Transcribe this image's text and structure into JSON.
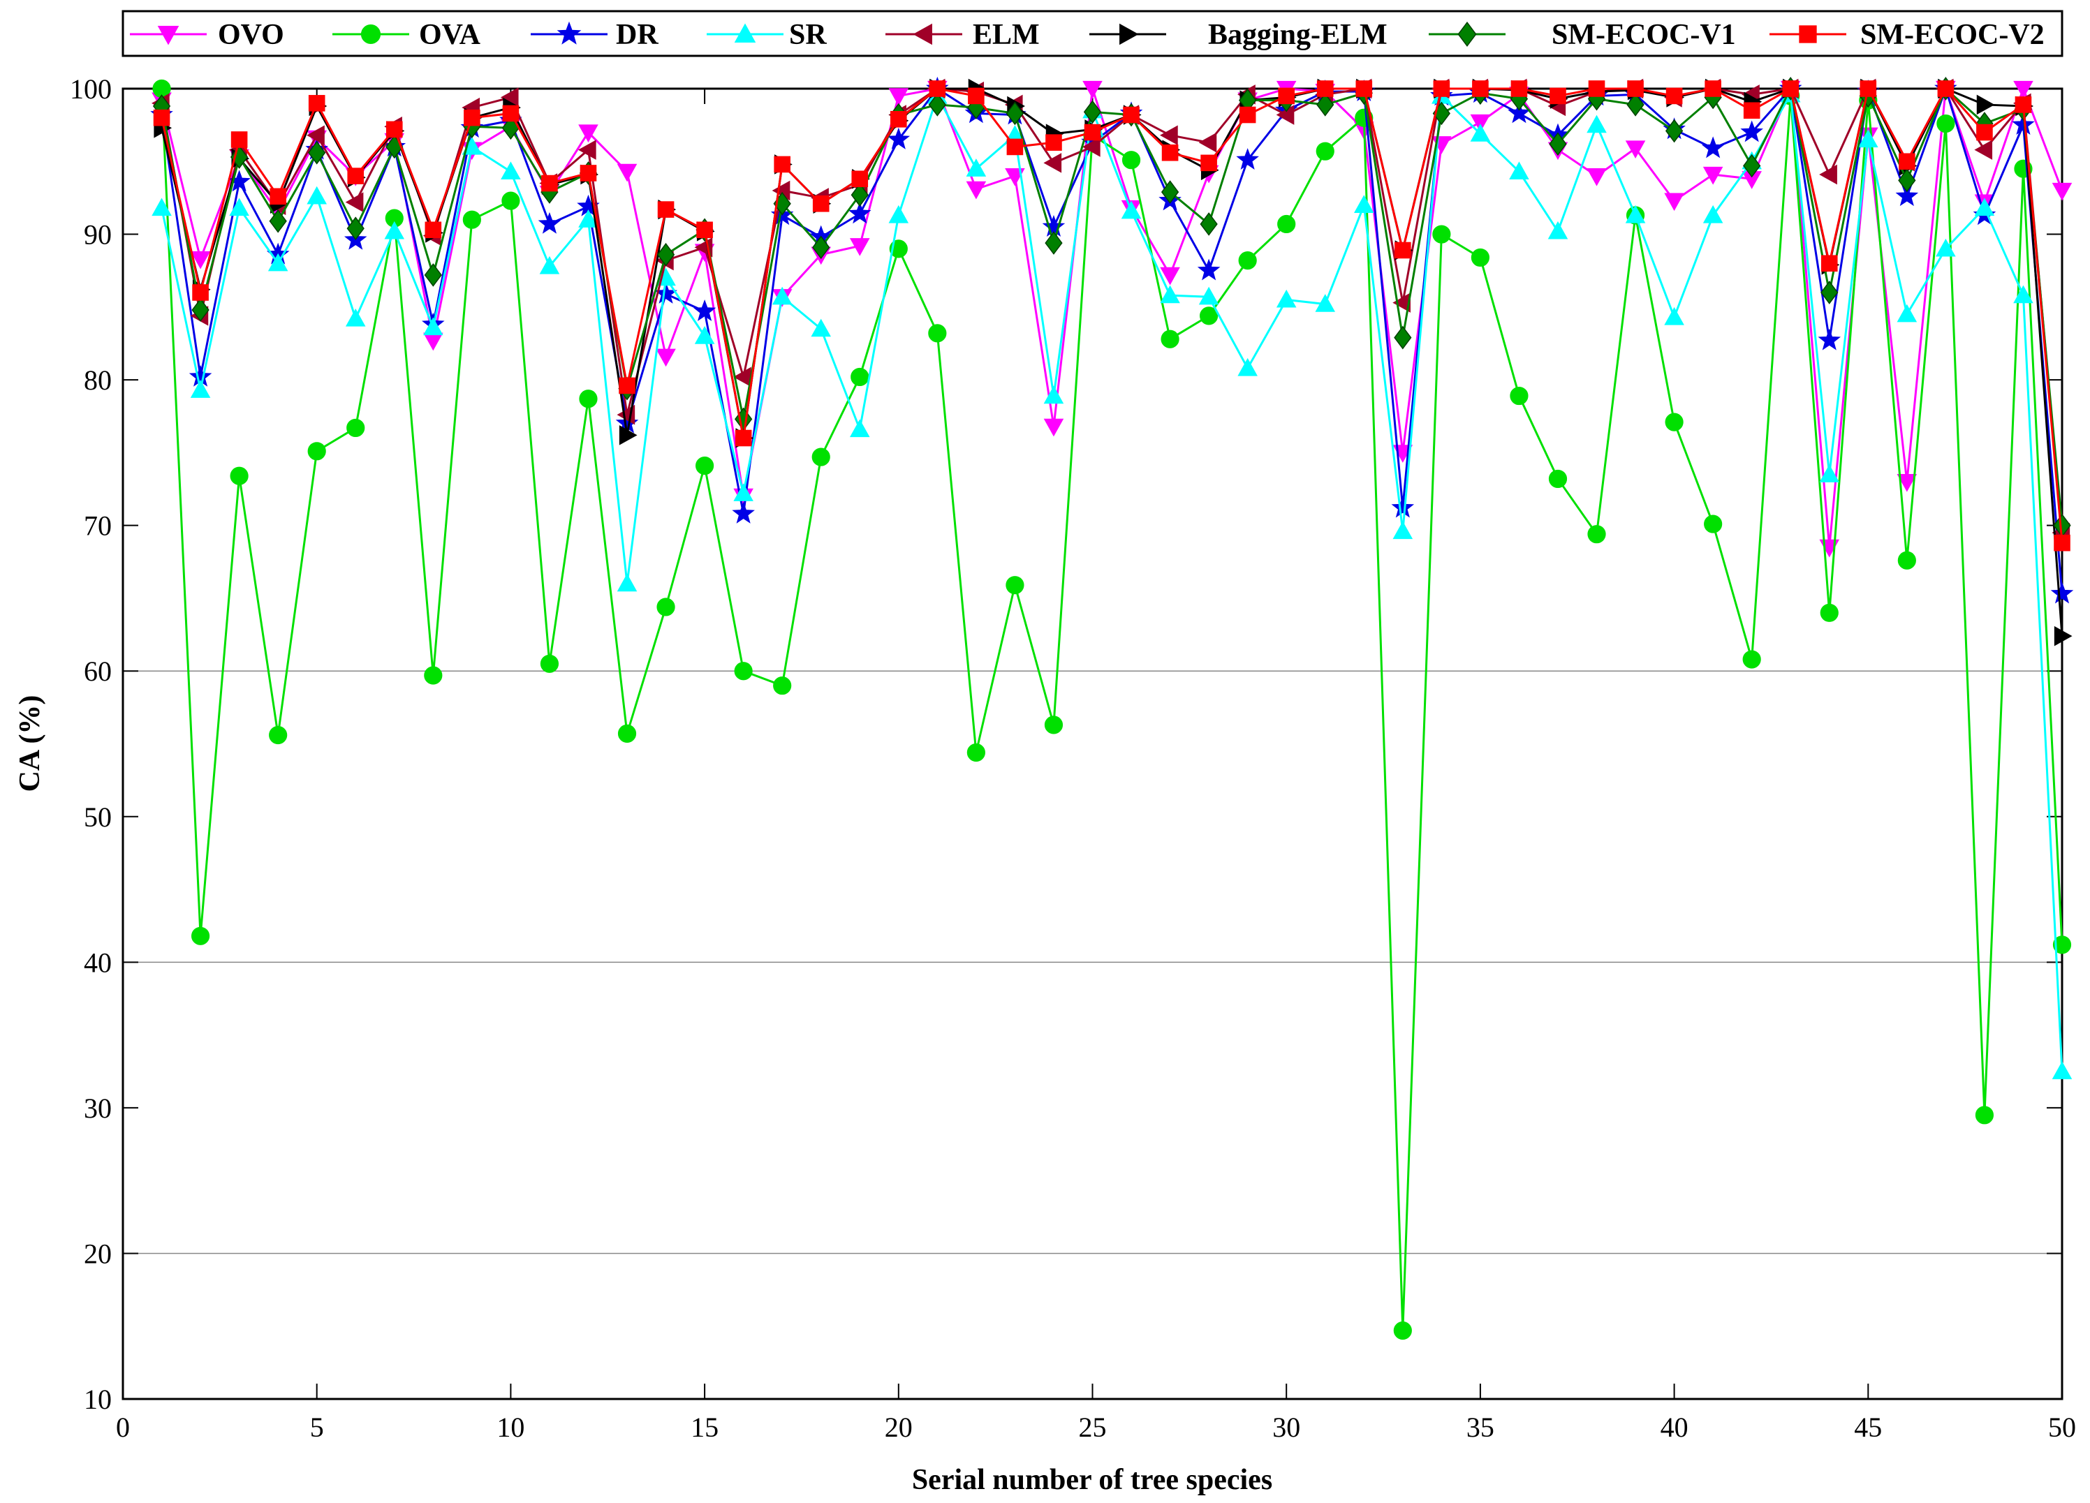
{
  "chart_data": {
    "type": "line",
    "title": "",
    "xlabel": "Serial number of tree species",
    "ylabel": "CA (%)",
    "xlim": [
      0,
      50
    ],
    "ylim": [
      10,
      100
    ],
    "xticks": [
      0,
      5,
      10,
      15,
      20,
      25,
      30,
      35,
      40,
      45,
      50
    ],
    "yticks": [
      10,
      20,
      30,
      40,
      50,
      60,
      70,
      80,
      90,
      100
    ],
    "grid_lines_y": [
      20,
      40,
      60
    ],
    "legend_position": "top (horizontal, above plot)",
    "x": [
      1,
      2,
      3,
      4,
      5,
      6,
      7,
      8,
      9,
      10,
      11,
      12,
      13,
      14,
      15,
      16,
      17,
      18,
      19,
      20,
      21,
      22,
      23,
      24,
      25,
      26,
      27,
      28,
      29,
      30,
      31,
      32,
      33,
      34,
      35,
      36,
      37,
      38,
      39,
      40,
      41,
      42,
      43,
      44,
      45,
      46,
      47,
      48,
      49,
      50
    ],
    "series": [
      {
        "name": "OVO",
        "color": "#ff00ff",
        "marker": "triangle-down",
        "values": [
          99.2,
          88.3,
          95.3,
          91.5,
          96.6,
          94.0,
          96.4,
          82.7,
          95.8,
          97.4,
          92.8,
          97.0,
          94.3,
          81.6,
          88.8,
          72.0,
          85.7,
          88.6,
          89.2,
          99.5,
          100,
          93.1,
          94.0,
          76.8,
          100,
          91.8,
          87.2,
          94.2,
          99.2,
          100,
          99.8,
          97.2,
          75.0,
          96.2,
          97.7,
          99.6,
          95.8,
          94.0,
          95.9,
          92.3,
          94.1,
          93.8,
          100,
          68.5,
          96.8,
          73.0,
          100,
          92.2,
          100,
          93.0
        ]
      },
      {
        "name": "OVA",
        "color": "#00e000",
        "marker": "circle",
        "values": [
          100,
          41.8,
          73.4,
          55.6,
          75.1,
          76.7,
          91.1,
          59.7,
          91.0,
          92.3,
          60.5,
          78.7,
          55.7,
          64.4,
          74.1,
          60.0,
          59.0,
          74.7,
          80.2,
          89.0,
          83.2,
          54.4,
          65.9,
          56.3,
          96.8,
          95.1,
          82.8,
          84.4,
          88.2,
          90.7,
          95.7,
          98.0,
          14.7,
          90.0,
          88.4,
          78.9,
          73.2,
          69.4,
          91.3,
          77.1,
          70.1,
          60.8,
          99.5,
          64.0,
          99.2,
          67.6,
          97.6,
          29.5,
          94.5,
          41.2
        ]
      },
      {
        "name": "DR",
        "color": "#0000e6",
        "marker": "star",
        "values": [
          98.2,
          80.2,
          93.6,
          88.6,
          95.8,
          89.6,
          96.0,
          83.8,
          97.3,
          97.8,
          90.7,
          91.9,
          77.0,
          85.9,
          84.7,
          70.8,
          91.3,
          89.8,
          91.4,
          96.5,
          100,
          98.3,
          98.2,
          90.5,
          96.3,
          98.3,
          92.3,
          87.5,
          95.1,
          98.5,
          99.8,
          99.8,
          71.2,
          99.5,
          99.7,
          98.3,
          96.8,
          99.5,
          99.6,
          97.2,
          95.9,
          97.0,
          100,
          82.7,
          99.8,
          92.6,
          100,
          91.3,
          97.5,
          65.3
        ]
      },
      {
        "name": "SR",
        "color": "#00ffff",
        "marker": "triangle-up",
        "values": [
          91.8,
          79.3,
          91.8,
          88.0,
          92.6,
          84.2,
          90.2,
          83.6,
          96.0,
          94.3,
          87.8,
          91.0,
          66.0,
          87.0,
          83.0,
          72.2,
          85.7,
          83.5,
          76.6,
          91.3,
          99.5,
          94.5,
          96.8,
          78.9,
          98.5,
          91.6,
          85.8,
          85.7,
          80.8,
          85.5,
          85.2,
          92.0,
          69.6,
          99.5,
          96.9,
          94.3,
          90.2,
          97.5,
          91.3,
          84.3,
          91.3,
          95.0,
          99.6,
          73.5,
          96.5,
          84.5,
          89.0,
          91.8,
          85.8,
          32.5
        ]
      },
      {
        "name": "ELM",
        "color": "#a00028",
        "marker": "triangle-left",
        "values": [
          99.0,
          84.4,
          95.8,
          92.0,
          96.8,
          92.2,
          97.4,
          89.9,
          98.7,
          99.4,
          93.5,
          95.8,
          77.6,
          88.2,
          89.1,
          80.2,
          93.0,
          92.5,
          93.4,
          98.2,
          100,
          99.8,
          98.9,
          94.9,
          96.0,
          98.2,
          96.8,
          96.3,
          99.6,
          98.2,
          99.6,
          100,
          85.3,
          100,
          100,
          100,
          98.8,
          99.8,
          100,
          99.4,
          100,
          99.6,
          100,
          94.1,
          100,
          95.0,
          100,
          95.8,
          99.0,
          69.5
        ]
      },
      {
        "name": "Bagging-ELM",
        "color": "#000000",
        "marker": "triangle-right",
        "values": [
          97.3,
          86.2,
          95.2,
          92.1,
          98.8,
          93.9,
          97.1,
          90.1,
          98.0,
          98.7,
          93.4,
          94.1,
          76.2,
          91.7,
          90.2,
          76.0,
          94.8,
          92.1,
          93.8,
          97.8,
          100,
          100,
          98.8,
          96.9,
          97.2,
          98.2,
          95.8,
          94.4,
          99.2,
          99.4,
          100,
          100,
          88.9,
          100,
          100,
          99.9,
          99.3,
          99.8,
          99.9,
          99.4,
          100,
          99.1,
          100,
          87.9,
          100,
          94.7,
          100,
          98.9,
          98.8,
          62.4
        ]
      },
      {
        "name": "SM-ECOC-V1",
        "color": "#008000",
        "marker": "diamond",
        "values": [
          98.8,
          84.8,
          95.3,
          90.9,
          95.6,
          90.4,
          96.0,
          87.2,
          97.4,
          97.3,
          92.9,
          94.2,
          79.4,
          88.6,
          90.3,
          77.3,
          92.1,
          89.1,
          92.7,
          98.2,
          98.9,
          98.7,
          98.3,
          89.4,
          98.4,
          98.2,
          92.9,
          90.7,
          99.2,
          99.2,
          98.9,
          99.7,
          82.9,
          98.3,
          99.7,
          99.3,
          96.2,
          99.3,
          98.9,
          97.1,
          99.4,
          94.7,
          100,
          86.0,
          99.5,
          93.7,
          100,
          97.6,
          98.6,
          70.0
        ]
      },
      {
        "name": "SM-ECOC-V2",
        "color": "#ff0000",
        "marker": "square",
        "values": [
          98.0,
          86.0,
          96.5,
          92.6,
          99.0,
          94.0,
          97.2,
          90.3,
          98.0,
          98.3,
          93.5,
          94.2,
          79.6,
          91.7,
          90.3,
          76.0,
          94.8,
          92.1,
          93.8,
          97.9,
          100,
          99.5,
          96.0,
          96.3,
          97.0,
          98.2,
          95.6,
          94.9,
          98.2,
          99.5,
          100,
          100,
          88.9,
          100,
          100,
          100,
          99.5,
          100,
          100,
          99.5,
          100,
          98.5,
          100,
          88.0,
          100,
          95.0,
          100,
          97.0,
          98.9,
          68.8
        ]
      }
    ]
  }
}
